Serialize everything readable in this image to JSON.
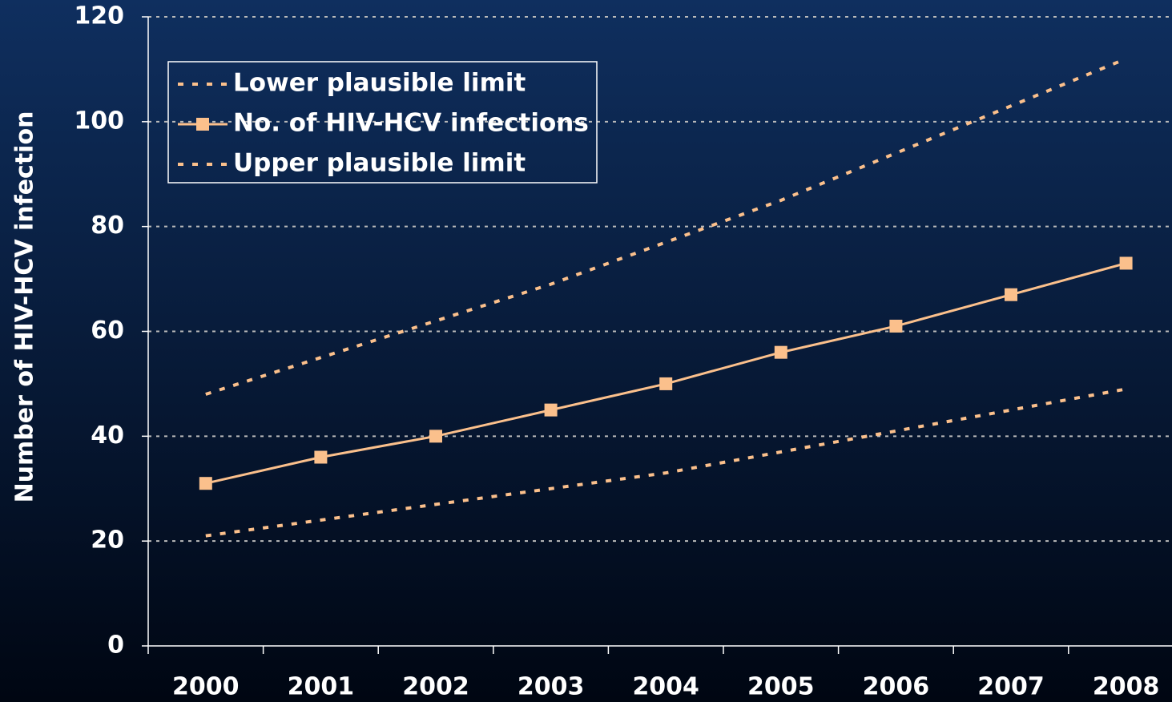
{
  "chart_data": {
    "type": "line",
    "y_label": "Number of HIV-HCV infection",
    "categories": [
      "2000",
      "2001",
      "2002",
      "2003",
      "2004",
      "2005",
      "2006",
      "2007",
      "2008"
    ],
    "series": [
      {
        "name": "Lower plausible limit",
        "color": "#fbc08c",
        "style": "dashed",
        "values": [
          21,
          24,
          27,
          30,
          33,
          37,
          41,
          45,
          49
        ]
      },
      {
        "name": "No. of HIV-HCV infections",
        "color": "#fbc08c",
        "style": "solid",
        "marker": "square",
        "values": [
          31,
          36,
          40,
          45,
          50,
          56,
          61,
          67,
          73
        ]
      },
      {
        "name": "Upper plausible limit",
        "color": "#fbc08c",
        "style": "dashed",
        "values": [
          48,
          55,
          62,
          69,
          77,
          85,
          94,
          103,
          112
        ]
      }
    ],
    "ylim": [
      0,
      120
    ],
    "yticks": [
      0,
      20,
      40,
      60,
      80,
      100,
      120
    ],
    "grid": true
  }
}
